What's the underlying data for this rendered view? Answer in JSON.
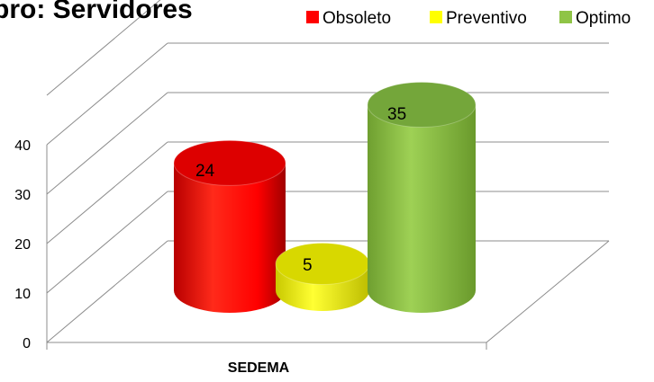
{
  "chart_data": {
    "type": "bar",
    "style": "3d-cylinder",
    "title": "bro: Servidores",
    "categories": [
      "SEDEMA"
    ],
    "series": [
      {
        "name": "Obsoleto",
        "values": [
          24
        ],
        "color": "#ff0000"
      },
      {
        "name": "Preventivo",
        "values": [
          5
        ],
        "color": "#ffff00"
      },
      {
        "name": "Optimo",
        "values": [
          35
        ],
        "color": "#8fc446"
      }
    ],
    "y_ticks": [
      "0",
      "10",
      "20",
      "30",
      "40"
    ],
    "ylim": [
      0,
      50
    ],
    "grid": true,
    "legend_position": "top-right"
  }
}
